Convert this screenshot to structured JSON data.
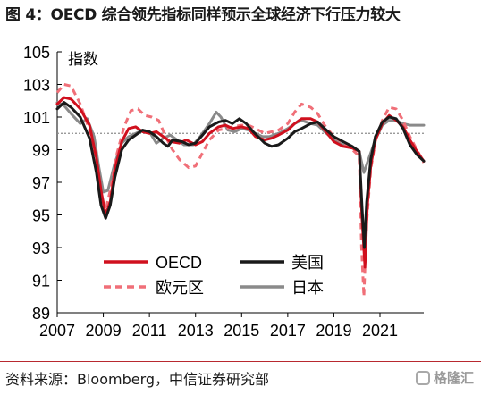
{
  "figure": {
    "title": "图 4：OECD 综合领先指标同样预示全球经济下行压力较大",
    "source": "资料来源：Bloomberg，中信证券研究部",
    "brand": "格隆汇"
  },
  "chart_data": {
    "type": "line",
    "title": "",
    "ylabel": "指数",
    "xlabel": "",
    "xlim": [
      2007,
      2022.9
    ],
    "ylim": [
      89,
      105
    ],
    "xticks": [
      "2007",
      "2009",
      "2011",
      "2013",
      "2015",
      "2017",
      "2019",
      "2021"
    ],
    "yticks": [
      "89",
      "91",
      "93",
      "95",
      "97",
      "99",
      "101",
      "103",
      "105"
    ],
    "reference_line": 100,
    "legend_placement": "lower-center",
    "series": [
      {
        "name": "OECD",
        "color": "#d0101e",
        "style": "solid",
        "points": [
          [
            2007.0,
            101.8
          ],
          [
            2007.3,
            102.2
          ],
          [
            2007.6,
            102.1
          ],
          [
            2008.0,
            101.5
          ],
          [
            2008.4,
            100.5
          ],
          [
            2008.7,
            98.5
          ],
          [
            2008.9,
            96.5
          ],
          [
            2009.1,
            95.0
          ],
          [
            2009.3,
            95.8
          ],
          [
            2009.5,
            97.8
          ],
          [
            2009.8,
            99.5
          ],
          [
            2010.1,
            100.3
          ],
          [
            2010.4,
            100.4
          ],
          [
            2010.7,
            100.1
          ],
          [
            2011.0,
            100.0
          ],
          [
            2011.3,
            100.1
          ],
          [
            2011.6,
            99.8
          ],
          [
            2011.9,
            99.5
          ],
          [
            2012.3,
            99.4
          ],
          [
            2012.6,
            99.6
          ],
          [
            2013.0,
            99.3
          ],
          [
            2013.3,
            99.5
          ],
          [
            2013.6,
            100.0
          ],
          [
            2014.0,
            100.4
          ],
          [
            2014.3,
            100.5
          ],
          [
            2014.6,
            100.3
          ],
          [
            2015.0,
            100.4
          ],
          [
            2015.3,
            100.3
          ],
          [
            2015.6,
            99.8
          ],
          [
            2016.0,
            99.6
          ],
          [
            2016.3,
            99.7
          ],
          [
            2016.6,
            99.9
          ],
          [
            2017.0,
            100.2
          ],
          [
            2017.3,
            100.6
          ],
          [
            2017.6,
            100.9
          ],
          [
            2018.0,
            100.9
          ],
          [
            2018.3,
            100.7
          ],
          [
            2018.6,
            100.2
          ],
          [
            2019.0,
            99.5
          ],
          [
            2019.4,
            99.2
          ],
          [
            2019.8,
            99.1
          ],
          [
            2020.1,
            98.9
          ],
          [
            2020.22,
            94.8
          ],
          [
            2020.35,
            91.8
          ],
          [
            2020.45,
            95.5
          ],
          [
            2020.6,
            98.0
          ],
          [
            2020.8,
            99.6
          ],
          [
            2021.1,
            100.6
          ],
          [
            2021.4,
            101.1
          ],
          [
            2021.7,
            100.8
          ],
          [
            2022.0,
            100.4
          ],
          [
            2022.3,
            99.6
          ],
          [
            2022.6,
            98.9
          ],
          [
            2022.9,
            98.3
          ]
        ]
      },
      {
        "name": "美国",
        "color": "#1a1a1a",
        "style": "solid",
        "points": [
          [
            2007.0,
            101.5
          ],
          [
            2007.3,
            101.9
          ],
          [
            2007.6,
            101.6
          ],
          [
            2008.0,
            101.0
          ],
          [
            2008.4,
            99.7
          ],
          [
            2008.7,
            97.6
          ],
          [
            2008.9,
            95.6
          ],
          [
            2009.1,
            94.8
          ],
          [
            2009.3,
            95.6
          ],
          [
            2009.5,
            97.3
          ],
          [
            2009.8,
            99.0
          ],
          [
            2010.1,
            99.6
          ],
          [
            2010.4,
            99.9
          ],
          [
            2010.7,
            100.2
          ],
          [
            2011.0,
            100.1
          ],
          [
            2011.3,
            99.8
          ],
          [
            2011.6,
            99.4
          ],
          [
            2011.8,
            99.2
          ],
          [
            2012.0,
            99.6
          ],
          [
            2012.4,
            99.5
          ],
          [
            2012.7,
            99.3
          ],
          [
            2013.0,
            99.4
          ],
          [
            2013.3,
            99.9
          ],
          [
            2013.6,
            100.4
          ],
          [
            2014.0,
            100.7
          ],
          [
            2014.3,
            100.8
          ],
          [
            2014.6,
            100.6
          ],
          [
            2014.9,
            100.9
          ],
          [
            2015.2,
            100.6
          ],
          [
            2015.5,
            100.1
          ],
          [
            2016.0,
            99.4
          ],
          [
            2016.3,
            99.2
          ],
          [
            2016.6,
            99.3
          ],
          [
            2017.0,
            99.7
          ],
          [
            2017.3,
            100.1
          ],
          [
            2017.6,
            100.3
          ],
          [
            2018.0,
            100.6
          ],
          [
            2018.3,
            100.7
          ],
          [
            2018.6,
            100.3
          ],
          [
            2019.0,
            99.8
          ],
          [
            2019.4,
            99.5
          ],
          [
            2019.8,
            99.2
          ],
          [
            2020.1,
            98.9
          ],
          [
            2020.22,
            95.5
          ],
          [
            2020.32,
            93.0
          ],
          [
            2020.42,
            95.8
          ],
          [
            2020.6,
            98.4
          ],
          [
            2020.8,
            99.8
          ],
          [
            2021.1,
            100.7
          ],
          [
            2021.4,
            101.0
          ],
          [
            2021.7,
            100.9
          ],
          [
            2022.0,
            100.3
          ],
          [
            2022.3,
            99.3
          ],
          [
            2022.6,
            98.7
          ],
          [
            2022.9,
            98.3
          ]
        ]
      },
      {
        "name": "欧元区",
        "color": "#f06f78",
        "style": "dashed",
        "points": [
          [
            2007.0,
            102.5
          ],
          [
            2007.3,
            103.0
          ],
          [
            2007.6,
            102.9
          ],
          [
            2008.0,
            101.8
          ],
          [
            2008.4,
            100.2
          ],
          [
            2008.7,
            98.2
          ],
          [
            2008.9,
            96.2
          ],
          [
            2009.1,
            95.3
          ],
          [
            2009.3,
            96.5
          ],
          [
            2009.6,
            98.8
          ],
          [
            2009.9,
            100.4
          ],
          [
            2010.2,
            101.4
          ],
          [
            2010.5,
            101.5
          ],
          [
            2010.8,
            101.1
          ],
          [
            2011.1,
            101.0
          ],
          [
            2011.4,
            100.8
          ],
          [
            2011.7,
            99.8
          ],
          [
            2012.0,
            99.0
          ],
          [
            2012.3,
            98.4
          ],
          [
            2012.7,
            97.9
          ],
          [
            2013.0,
            98.0
          ],
          [
            2013.3,
            98.8
          ],
          [
            2013.6,
            99.6
          ],
          [
            2014.0,
            100.2
          ],
          [
            2014.3,
            100.3
          ],
          [
            2014.6,
            100.4
          ],
          [
            2015.0,
            100.5
          ],
          [
            2015.3,
            100.5
          ],
          [
            2015.6,
            100.3
          ],
          [
            2016.0,
            100.0
          ],
          [
            2016.3,
            100.1
          ],
          [
            2016.6,
            100.2
          ],
          [
            2017.0,
            100.6
          ],
          [
            2017.3,
            101.3
          ],
          [
            2017.6,
            101.8
          ],
          [
            2018.0,
            101.6
          ],
          [
            2018.3,
            101.2
          ],
          [
            2018.6,
            100.5
          ],
          [
            2019.0,
            99.8
          ],
          [
            2019.4,
            99.4
          ],
          [
            2019.8,
            99.0
          ],
          [
            2020.1,
            98.6
          ],
          [
            2020.2,
            93.0
          ],
          [
            2020.3,
            90.0
          ],
          [
            2020.42,
            94.5
          ],
          [
            2020.6,
            97.8
          ],
          [
            2020.8,
            99.5
          ],
          [
            2021.1,
            100.8
          ],
          [
            2021.4,
            101.6
          ],
          [
            2021.7,
            101.5
          ],
          [
            2022.0,
            100.8
          ],
          [
            2022.3,
            99.8
          ],
          [
            2022.6,
            99.0
          ],
          [
            2022.9,
            98.2
          ]
        ]
      },
      {
        "name": "日本",
        "color": "#8a8a8a",
        "style": "solid",
        "points": [
          [
            2007.0,
            101.9
          ],
          [
            2007.3,
            101.7
          ],
          [
            2007.6,
            101.2
          ],
          [
            2008.0,
            100.6
          ],
          [
            2008.3,
            100.9
          ],
          [
            2008.6,
            99.8
          ],
          [
            2008.8,
            98.0
          ],
          [
            2009.0,
            96.4
          ],
          [
            2009.2,
            96.5
          ],
          [
            2009.5,
            98.2
          ],
          [
            2009.8,
            99.4
          ],
          [
            2010.1,
            99.8
          ],
          [
            2010.4,
            100.0
          ],
          [
            2010.7,
            100.2
          ],
          [
            2011.0,
            100.1
          ],
          [
            2011.3,
            99.4
          ],
          [
            2011.6,
            99.7
          ],
          [
            2011.9,
            99.9
          ],
          [
            2012.2,
            99.6
          ],
          [
            2012.5,
            99.3
          ],
          [
            2012.9,
            99.3
          ],
          [
            2013.2,
            99.8
          ],
          [
            2013.6,
            100.6
          ],
          [
            2013.9,
            101.3
          ],
          [
            2014.1,
            101.0
          ],
          [
            2014.4,
            100.2
          ],
          [
            2014.7,
            100.1
          ],
          [
            2015.0,
            100.3
          ],
          [
            2015.3,
            100.2
          ],
          [
            2015.6,
            100.0
          ],
          [
            2015.9,
            99.8
          ],
          [
            2016.2,
            99.8
          ],
          [
            2016.6,
            100.0
          ],
          [
            2017.0,
            100.3
          ],
          [
            2017.3,
            100.6
          ],
          [
            2017.6,
            100.8
          ],
          [
            2018.0,
            100.6
          ],
          [
            2018.3,
            100.5
          ],
          [
            2018.6,
            100.1
          ],
          [
            2019.0,
            99.6
          ],
          [
            2019.4,
            99.3
          ],
          [
            2019.8,
            99.1
          ],
          [
            2020.1,
            98.9
          ],
          [
            2020.3,
            97.6
          ],
          [
            2020.5,
            98.4
          ],
          [
            2020.8,
            99.6
          ],
          [
            2021.1,
            100.5
          ],
          [
            2021.4,
            100.8
          ],
          [
            2021.7,
            100.8
          ],
          [
            2022.0,
            100.6
          ],
          [
            2022.3,
            100.5
          ],
          [
            2022.6,
            100.5
          ],
          [
            2022.9,
            100.5
          ]
        ]
      }
    ],
    "legend_order": [
      0,
      1,
      2,
      3
    ]
  }
}
